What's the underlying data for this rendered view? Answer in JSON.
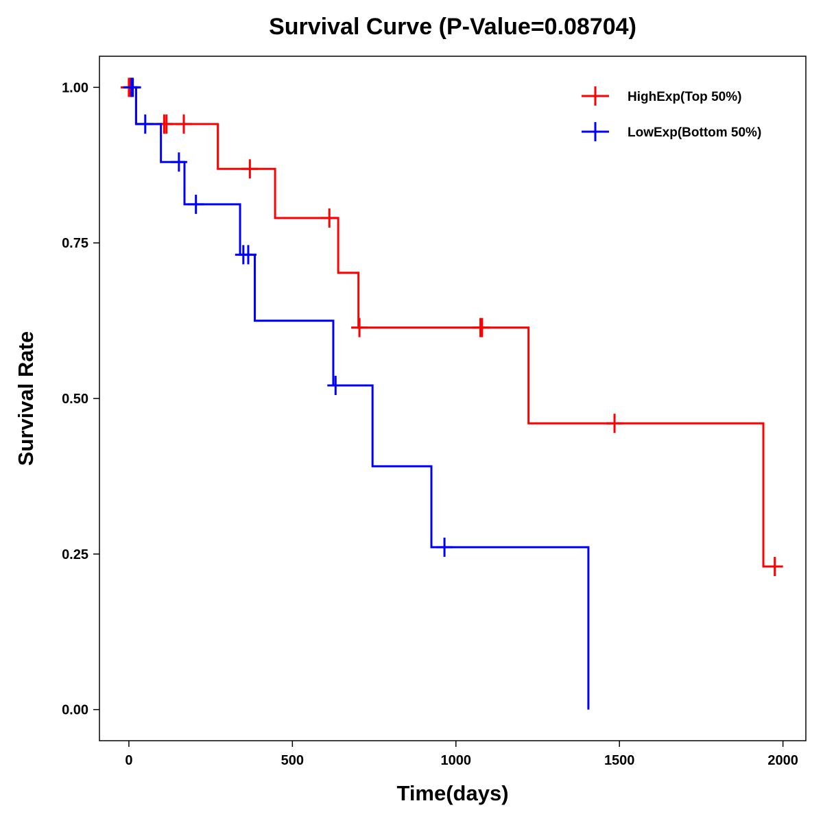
{
  "chart_data": {
    "type": "line",
    "subtype": "kaplan-meier-step",
    "title": "Survival Curve (P-Value=0.08704)",
    "xlabel": "Time(days)",
    "ylabel": "Survival Rate",
    "xlim": [
      -90,
      2070
    ],
    "ylim": [
      -0.05,
      1.05
    ],
    "xticks": [
      0,
      500,
      1000,
      1500,
      2000
    ],
    "xtick_labels": [
      "0",
      "500",
      "1000",
      "1500",
      "2000"
    ],
    "yticks": [
      0,
      0.25,
      0.5,
      0.75,
      1
    ],
    "ytick_labels": [
      "0.00",
      "0.25",
      "0.50",
      "0.75",
      "1.00"
    ],
    "grid": false,
    "legend_position": "top-right",
    "series": [
      {
        "name": "HighExp(Top 50%)",
        "color": "#ff0000",
        "steps": [
          [
            0,
            1.0
          ],
          [
            22,
            0.941
          ],
          [
            272,
            0.869
          ],
          [
            447,
            0.79
          ],
          [
            640,
            0.702
          ],
          [
            702,
            0.614
          ],
          [
            1222,
            0.46
          ],
          [
            1940,
            0.23
          ],
          [
            1990,
            0.23
          ]
        ],
        "censored": [
          [
            0,
            1.0
          ],
          [
            5,
            1.0
          ],
          [
            108,
            0.941
          ],
          [
            115,
            0.941
          ],
          [
            168,
            0.941
          ],
          [
            370,
            0.869
          ],
          [
            613,
            0.79
          ],
          [
            705,
            0.614
          ],
          [
            1075,
            0.614
          ],
          [
            1080,
            0.614
          ],
          [
            1485,
            0.46
          ],
          [
            1975,
            0.23
          ]
        ]
      },
      {
        "name": "LowExp(Bottom 50%)",
        "color": "#0000ff",
        "steps": [
          [
            0,
            1.0
          ],
          [
            22,
            0.941
          ],
          [
            98,
            0.88
          ],
          [
            170,
            0.812
          ],
          [
            340,
            0.731
          ],
          [
            385,
            0.625
          ],
          [
            625,
            0.521
          ],
          [
            745,
            0.391
          ],
          [
            925,
            0.261
          ],
          [
            1405,
            0.0
          ]
        ],
        "censored": [
          [
            8,
            1.0
          ],
          [
            12,
            1.0
          ],
          [
            50,
            0.941
          ],
          [
            153,
            0.88
          ],
          [
            205,
            0.812
          ],
          [
            350,
            0.731
          ],
          [
            365,
            0.731
          ],
          [
            632,
            0.521
          ],
          [
            965,
            0.261
          ]
        ]
      }
    ]
  }
}
